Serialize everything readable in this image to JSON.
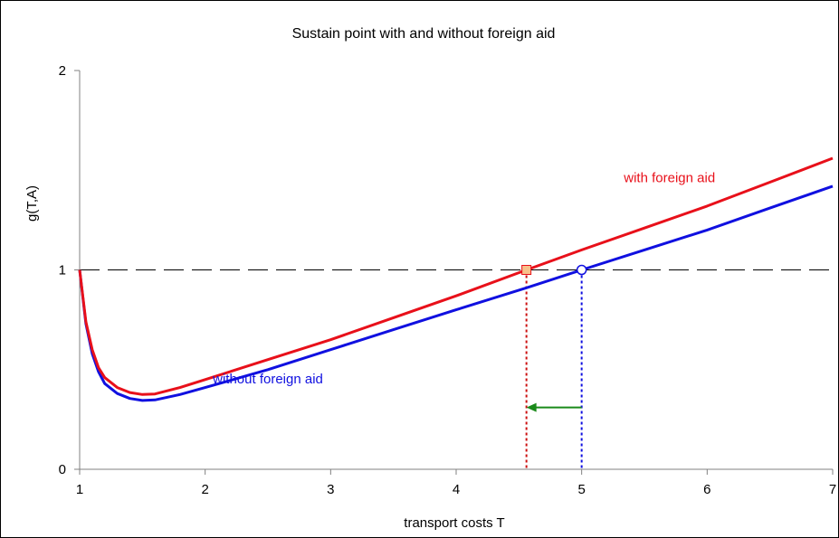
{
  "chart_data": {
    "type": "line",
    "title": "Sustain point with and without foreign aid",
    "xlabel": "transport costs T",
    "ylabel": "g(T,A)",
    "xlim": [
      1,
      7
    ],
    "ylim": [
      0,
      2
    ],
    "x_ticks": [
      "1",
      "2",
      "3",
      "4",
      "5",
      "6",
      "7"
    ],
    "y_ticks": [
      "0",
      "1",
      "2"
    ],
    "series": [
      {
        "name": "with foreign aid",
        "color": "#e8101a",
        "points": [
          [
            1.0,
            1.0
          ],
          [
            1.05,
            0.74
          ],
          [
            1.1,
            0.6
          ],
          [
            1.15,
            0.51
          ],
          [
            1.2,
            0.46
          ],
          [
            1.3,
            0.41
          ],
          [
            1.4,
            0.385
          ],
          [
            1.5,
            0.375
          ],
          [
            1.6,
            0.378
          ],
          [
            1.8,
            0.41
          ],
          [
            2.0,
            0.45
          ],
          [
            2.5,
            0.55
          ],
          [
            3.0,
            0.65
          ],
          [
            3.5,
            0.76
          ],
          [
            4.0,
            0.87
          ],
          [
            4.56,
            1.0
          ],
          [
            5.0,
            1.1
          ],
          [
            5.5,
            1.21
          ],
          [
            6.0,
            1.32
          ],
          [
            6.5,
            1.44
          ],
          [
            7.0,
            1.56
          ]
        ]
      },
      {
        "name": "without foreign aid",
        "color": "#1010e0",
        "points": [
          [
            1.0,
            1.0
          ],
          [
            1.05,
            0.73
          ],
          [
            1.1,
            0.58
          ],
          [
            1.15,
            0.49
          ],
          [
            1.2,
            0.43
          ],
          [
            1.3,
            0.38
          ],
          [
            1.4,
            0.355
          ],
          [
            1.5,
            0.345
          ],
          [
            1.6,
            0.348
          ],
          [
            1.8,
            0.375
          ],
          [
            2.0,
            0.41
          ],
          [
            2.5,
            0.5
          ],
          [
            3.0,
            0.6
          ],
          [
            3.5,
            0.7
          ],
          [
            4.0,
            0.8
          ],
          [
            4.56,
            0.91
          ],
          [
            5.0,
            1.0
          ],
          [
            5.5,
            1.1
          ],
          [
            6.0,
            1.2
          ],
          [
            6.5,
            1.31
          ],
          [
            7.0,
            1.42
          ]
        ]
      }
    ],
    "reference_line": {
      "y": 1,
      "style": "dashed",
      "color": "#000000"
    },
    "markers": [
      {
        "x": 4.56,
        "y": 1.0,
        "shape": "square",
        "fill": "#f7c08a",
        "stroke": "#e8101a",
        "drop_line_color": "#cc1010"
      },
      {
        "x": 5.0,
        "y": 1.0,
        "shape": "circle",
        "fill": "#ffffff",
        "stroke": "#1010e0",
        "drop_line_color": "#1010e0"
      }
    ],
    "arrow": {
      "from_x": 5.0,
      "to_x": 4.56,
      "y": 0.31,
      "color": "#1a8a1a"
    },
    "annotations": [
      {
        "text": "with foreign aid",
        "x": 5.7,
        "y": 1.44,
        "color": "#e8101a"
      },
      {
        "text": "without foreign aid",
        "x": 2.5,
        "y": 0.43,
        "color": "#1010e0"
      }
    ],
    "grid": false,
    "legend": "none"
  }
}
